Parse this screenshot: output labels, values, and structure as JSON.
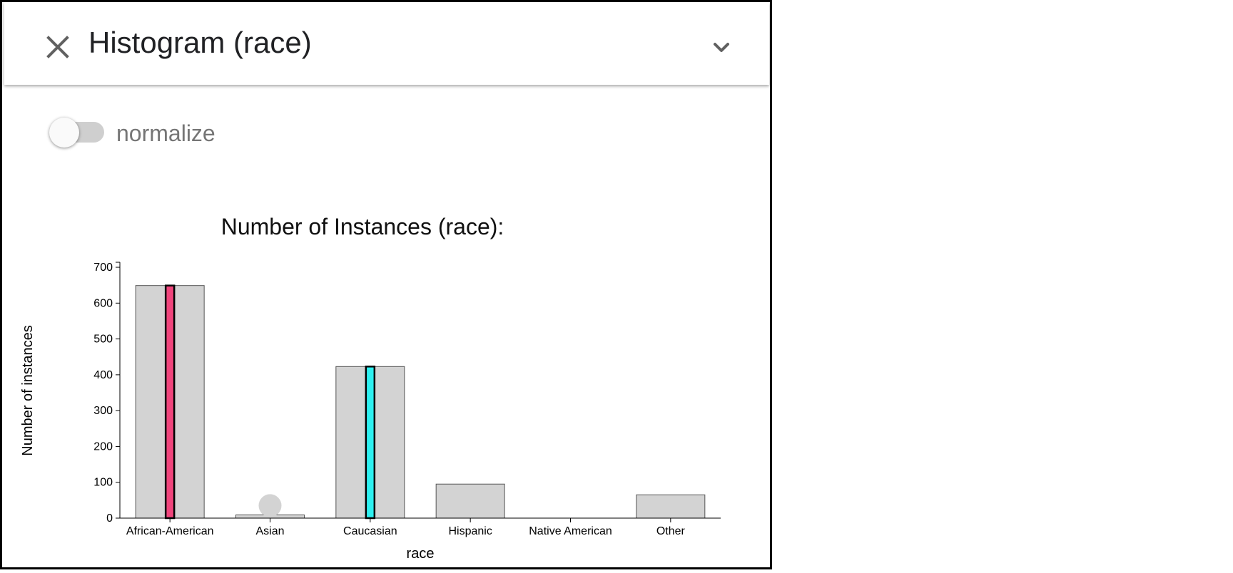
{
  "header": {
    "title": "Histogram (race)",
    "close_icon": "close-icon",
    "expand_icon": "chevron-down-icon"
  },
  "controls": {
    "normalize_label": "normalize",
    "normalize_on": false
  },
  "colors": {
    "bar_fill": "#d3d3d3",
    "highlight_1": "#f0457c",
    "highlight_2": "#2ef0f0",
    "marker": "#d3d3d3"
  },
  "chart_data": {
    "type": "bar",
    "title": "Number of Instances (race):",
    "xlabel": "race",
    "ylabel": "Number of instances",
    "ylim": [
      0,
      710
    ],
    "yticks": [
      0,
      100,
      200,
      300,
      400,
      500,
      600,
      700
    ],
    "categories": [
      "African-American",
      "Asian",
      "Caucasian",
      "Hispanic",
      "Native American",
      "Other"
    ],
    "values": [
      649,
      9,
      423,
      95,
      0,
      65
    ],
    "highlights": [
      {
        "category": "African-American",
        "value": 649,
        "color": "#f0457c"
      },
      {
        "category": "Caucasian",
        "value": 423,
        "color": "#2ef0f0"
      }
    ],
    "markers": [
      {
        "category": "Asian",
        "value": 35
      }
    ]
  }
}
